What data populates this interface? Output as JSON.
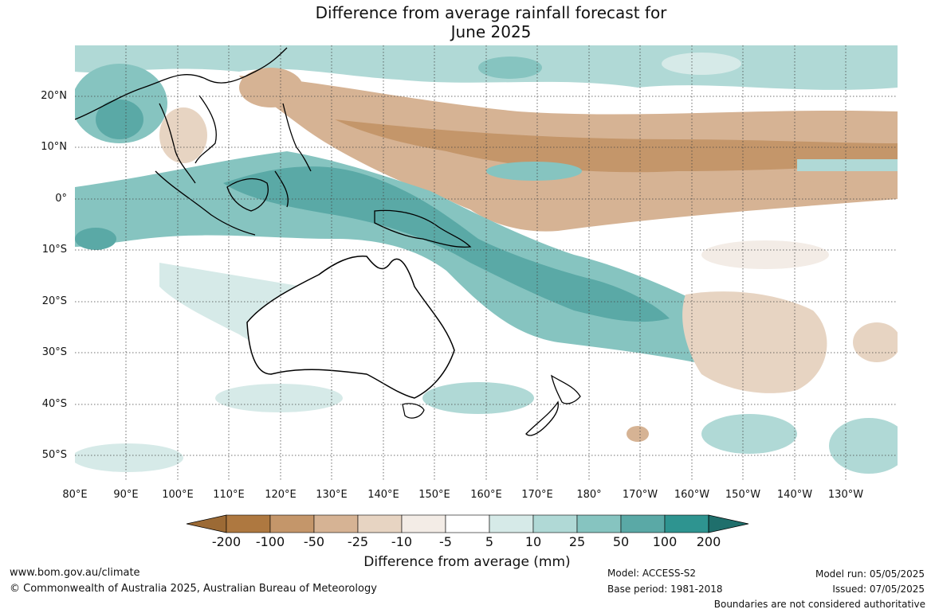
{
  "title_line1": "Difference from average rainfall forecast for",
  "title_line2": "June 2025",
  "lat_labels": [
    "20°N",
    "10°N",
    "0°",
    "10°S",
    "20°S",
    "30°S",
    "40°S",
    "50°S"
  ],
  "lon_labels": [
    "80°E",
    "90°E",
    "100°E",
    "110°E",
    "120°E",
    "130°E",
    "140°E",
    "150°E",
    "160°E",
    "170°E",
    "180°",
    "170°W",
    "160°W",
    "150°W",
    "140°W",
    "130°W"
  ],
  "colorbar": {
    "title": "Difference from average (mm)",
    "ticks": [
      "-200",
      "-100",
      "-50",
      "-25",
      "-10",
      "-5",
      "5",
      "10",
      "25",
      "50",
      "100",
      "200"
    ],
    "colors": [
      "#9c6a35",
      "#ae7840",
      "#c4966a",
      "#d6b394",
      "#e7d4c2",
      "#f3ece6",
      "#ffffff",
      "#d6eae8",
      "#b0d9d6",
      "#86c4c0",
      "#5aa9a6",
      "#2e9490",
      "#1f6f6c"
    ]
  },
  "footer": {
    "website": "www.bom.gov.au/climate",
    "copyright": "© Commonwealth of Australia 2025, Australian Bureau of Meteorology",
    "model": "Model: ACCESS-S2",
    "base_period": "Base period: 1981-2018",
    "model_run": "Model run: 05/05/2025",
    "issued": "Issued: 07/05/2025",
    "disclaimer": "Boundaries are not considered authoritative"
  }
}
